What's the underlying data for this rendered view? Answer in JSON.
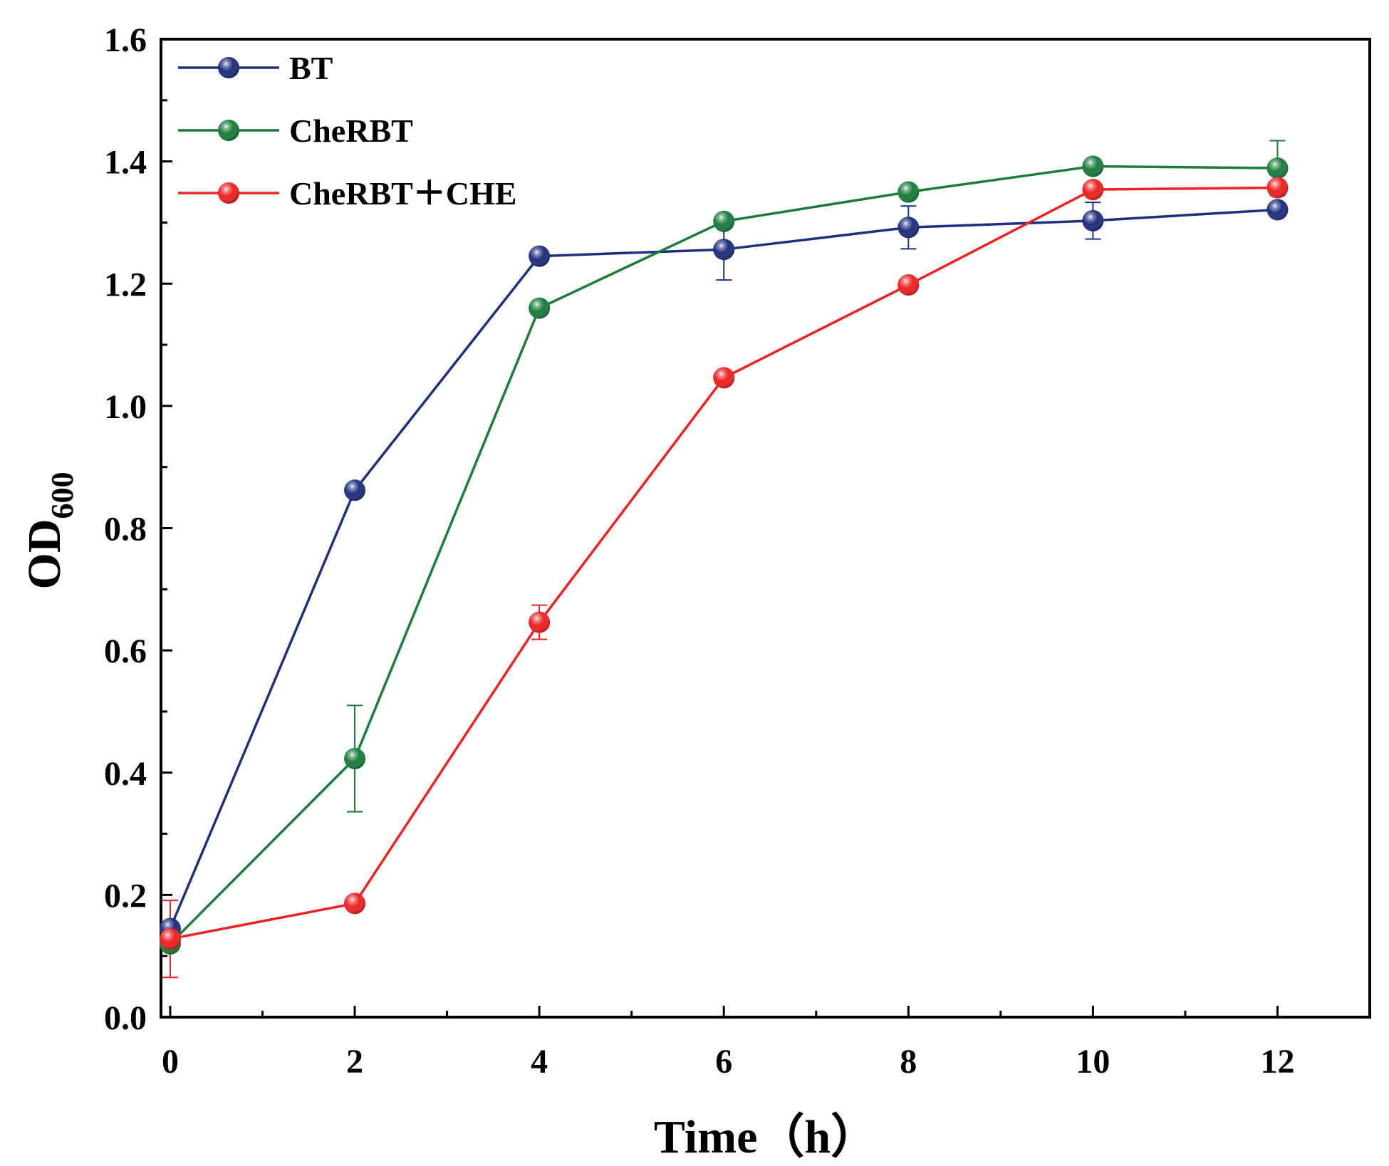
{
  "chart_data": {
    "type": "line",
    "title": "",
    "xlabel": "Time（h）",
    "ylabel": "OD",
    "ylabel_sub": "600",
    "xlim": [
      -0.1,
      13.0
    ],
    "ylim": [
      0.0,
      1.6
    ],
    "xticks": [
      0,
      2,
      4,
      6,
      8,
      10,
      12
    ],
    "xtick_labels": [
      "0",
      "2",
      "4",
      "6",
      "8",
      "10",
      "12"
    ],
    "yticks": [
      0.0,
      0.2,
      0.4,
      0.6,
      0.8,
      1.0,
      1.2,
      1.4,
      1.6
    ],
    "ytick_labels": [
      "0.0",
      "0.2",
      "0.4",
      "0.6",
      "0.8",
      "1.0",
      "1.2",
      "1.4",
      "1.6"
    ],
    "x": [
      0,
      2,
      4,
      6,
      8,
      10,
      12
    ],
    "grid": false,
    "legend_position": "top-left",
    "series": [
      {
        "name": "BT",
        "color": "#1f2f7f",
        "values": [
          0.145,
          0.862,
          1.245,
          1.256,
          1.292,
          1.303,
          1.321
        ],
        "errors": [
          0.01,
          0.0,
          0.0,
          0.05,
          0.035,
          0.03,
          0.0
        ]
      },
      {
        "name": "CheRBT",
        "color": "#1a7d3c",
        "values": [
          0.12,
          0.423,
          1.16,
          1.302,
          1.35,
          1.392,
          1.389
        ],
        "errors": [
          0.0,
          0.087,
          0.0,
          0.0,
          0.0,
          0.0,
          0.045
        ]
      },
      {
        "name": "CheRBT＋CHE",
        "color": "#ee2222",
        "values": [
          0.128,
          0.186,
          0.646,
          1.046,
          1.198,
          1.354,
          1.357
        ],
        "errors": [
          0.063,
          0.0,
          0.028,
          0.0,
          0.0,
          0.0,
          0.0
        ]
      }
    ]
  }
}
